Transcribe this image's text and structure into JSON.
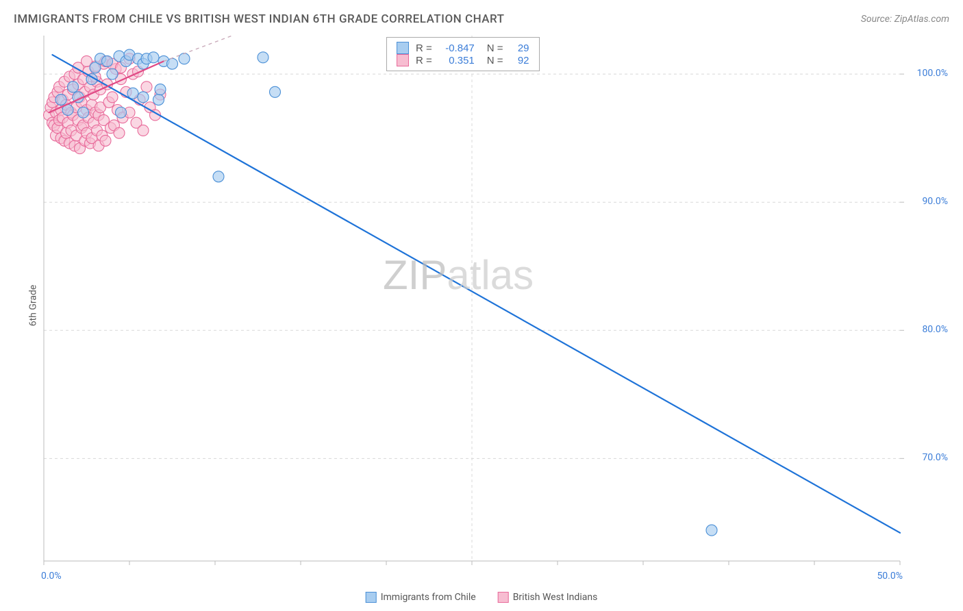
{
  "title": "IMMIGRANTS FROM CHILE VS BRITISH WEST INDIAN 6TH GRADE CORRELATION CHART",
  "source": "Source: ZipAtlas.com",
  "y_axis_label": "6th Grade",
  "watermark": "ZIPatlas",
  "chart": {
    "type": "scatter",
    "background_color": "#ffffff",
    "grid_color": "#d8d8d8",
    "axis_line_color": "#bbbbbb",
    "tick_label_color": "#3b7dd8",
    "tick_fontsize": 14,
    "xlim": [
      0,
      50
    ],
    "ylim": [
      62,
      103
    ],
    "x_ticks": [
      0,
      5,
      10,
      15,
      20,
      25,
      30,
      35,
      40,
      45,
      50
    ],
    "x_tick_labels": {
      "0": "0.0%",
      "50": "50.0%"
    },
    "y_ticks": [
      70,
      80,
      90,
      100
    ],
    "y_tick_labels": {
      "70": "70.0%",
      "80": "80.0%",
      "90": "90.0%",
      "100": "100.0%"
    },
    "series": [
      {
        "name": "Immigrants from Chile",
        "fill_color": "#a8cdf0",
        "stroke_color": "#4a8fd6",
        "marker_radius": 8,
        "marker_opacity": 0.65,
        "trend_line_color": "#1e73d8",
        "trend_line_width": 2.2,
        "trend_line_dash": "none",
        "trend_from": [
          0.5,
          101.5
        ],
        "trend_to": [
          50,
          64.2
        ],
        "dashed_extension": false,
        "points": [
          [
            1.0,
            98.0
          ],
          [
            1.4,
            97.2
          ],
          [
            1.7,
            99.0
          ],
          [
            2.0,
            98.2
          ],
          [
            2.3,
            97.0
          ],
          [
            2.8,
            99.6
          ],
          [
            3.0,
            100.5
          ],
          [
            3.3,
            101.2
          ],
          [
            3.7,
            101.0
          ],
          [
            4.0,
            100.0
          ],
          [
            4.4,
            101.4
          ],
          [
            4.8,
            101.0
          ],
          [
            5.0,
            101.5
          ],
          [
            5.5,
            101.2
          ],
          [
            5.8,
            100.8
          ],
          [
            6.0,
            101.2
          ],
          [
            6.4,
            101.3
          ],
          [
            6.7,
            98.0
          ],
          [
            7.0,
            101.0
          ],
          [
            7.5,
            100.8
          ],
          [
            8.2,
            101.2
          ],
          [
            4.5,
            97.0
          ],
          [
            5.2,
            98.5
          ],
          [
            6.8,
            98.8
          ],
          [
            5.8,
            98.2
          ],
          [
            12.8,
            101.3
          ],
          [
            13.5,
            98.6
          ],
          [
            10.2,
            92.0
          ],
          [
            39.0,
            64.4
          ]
        ]
      },
      {
        "name": "British West Indians",
        "fill_color": "#f7bdd1",
        "stroke_color": "#e86a9a",
        "marker_radius": 8,
        "marker_opacity": 0.6,
        "trend_line_color": "#e04884",
        "trend_line_width": 2.2,
        "trend_line_dash": "none",
        "trend_from": [
          0.3,
          97.0
        ],
        "trend_to": [
          7.0,
          101.0
        ],
        "dashed_extension": true,
        "dashed_to": [
          11.0,
          103.0
        ],
        "dashed_color": "#c8a8b8",
        "points": [
          [
            0.3,
            96.8
          ],
          [
            0.4,
            97.4
          ],
          [
            0.5,
            96.2
          ],
          [
            0.5,
            97.8
          ],
          [
            0.6,
            98.2
          ],
          [
            0.6,
            96.0
          ],
          [
            0.7,
            95.2
          ],
          [
            0.7,
            97.0
          ],
          [
            0.8,
            98.6
          ],
          [
            0.8,
            95.8
          ],
          [
            0.9,
            96.4
          ],
          [
            0.9,
            99.0
          ],
          [
            1.0,
            97.2
          ],
          [
            1.0,
            95.0
          ],
          [
            1.1,
            98.0
          ],
          [
            1.1,
            96.6
          ],
          [
            1.2,
            94.8
          ],
          [
            1.2,
            99.4
          ],
          [
            1.3,
            97.6
          ],
          [
            1.3,
            95.4
          ],
          [
            1.4,
            98.4
          ],
          [
            1.4,
            96.2
          ],
          [
            1.5,
            94.6
          ],
          [
            1.5,
            99.8
          ],
          [
            1.6,
            97.0
          ],
          [
            1.6,
            95.6
          ],
          [
            1.7,
            98.8
          ],
          [
            1.7,
            96.8
          ],
          [
            1.8,
            94.4
          ],
          [
            1.8,
            100.0
          ],
          [
            1.9,
            97.4
          ],
          [
            1.9,
            95.2
          ],
          [
            2.0,
            99.2
          ],
          [
            2.0,
            96.4
          ],
          [
            2.1,
            94.2
          ],
          [
            2.1,
            98.2
          ],
          [
            2.2,
            97.8
          ],
          [
            2.2,
            95.8
          ],
          [
            2.3,
            99.6
          ],
          [
            2.3,
            96.0
          ],
          [
            2.4,
            94.8
          ],
          [
            2.4,
            98.6
          ],
          [
            2.5,
            97.2
          ],
          [
            2.5,
            95.4
          ],
          [
            2.6,
            100.2
          ],
          [
            2.6,
            96.6
          ],
          [
            2.7,
            94.6
          ],
          [
            2.7,
            99.0
          ],
          [
            2.8,
            97.6
          ],
          [
            2.8,
            95.0
          ],
          [
            2.9,
            98.4
          ],
          [
            2.9,
            96.2
          ],
          [
            3.0,
            100.6
          ],
          [
            3.0,
            97.0
          ],
          [
            3.1,
            95.6
          ],
          [
            3.1,
            99.4
          ],
          [
            3.2,
            96.8
          ],
          [
            3.2,
            94.4
          ],
          [
            3.3,
            98.8
          ],
          [
            3.3,
            97.4
          ],
          [
            3.4,
            95.2
          ],
          [
            3.5,
            100.8
          ],
          [
            3.5,
            96.4
          ],
          [
            3.6,
            94.8
          ],
          [
            3.7,
            99.2
          ],
          [
            3.8,
            97.8
          ],
          [
            3.9,
            95.8
          ],
          [
            4.0,
            98.2
          ],
          [
            4.1,
            96.0
          ],
          [
            4.2,
            100.4
          ],
          [
            4.3,
            97.2
          ],
          [
            4.4,
            95.4
          ],
          [
            4.5,
            99.6
          ],
          [
            4.6,
            96.6
          ],
          [
            4.8,
            98.6
          ],
          [
            5.0,
            97.0
          ],
          [
            5.2,
            100.0
          ],
          [
            5.4,
            96.2
          ],
          [
            5.6,
            98.0
          ],
          [
            5.8,
            95.6
          ],
          [
            6.0,
            99.0
          ],
          [
            6.2,
            97.4
          ],
          [
            6.5,
            96.8
          ],
          [
            6.8,
            98.4
          ],
          [
            3.6,
            101.0
          ],
          [
            4.0,
            100.8
          ],
          [
            4.5,
            100.5
          ],
          [
            5.0,
            101.2
          ],
          [
            5.5,
            100.2
          ],
          [
            2.0,
            100.5
          ],
          [
            2.5,
            101.0
          ],
          [
            3.0,
            99.8
          ]
        ]
      }
    ]
  },
  "stats_box": {
    "rows": [
      {
        "swatch_fill": "#a8cdf0",
        "swatch_stroke": "#4a8fd6",
        "r": "-0.847",
        "n": "29"
      },
      {
        "swatch_fill": "#f7bdd1",
        "swatch_stroke": "#e86a9a",
        "r": "0.351",
        "n": "92"
      }
    ]
  },
  "bottom_legend": [
    {
      "fill": "#a8cdf0",
      "stroke": "#4a8fd6",
      "label": "Immigrants from Chile"
    },
    {
      "fill": "#f7bdd1",
      "stroke": "#e86a9a",
      "label": "British West Indians"
    }
  ]
}
